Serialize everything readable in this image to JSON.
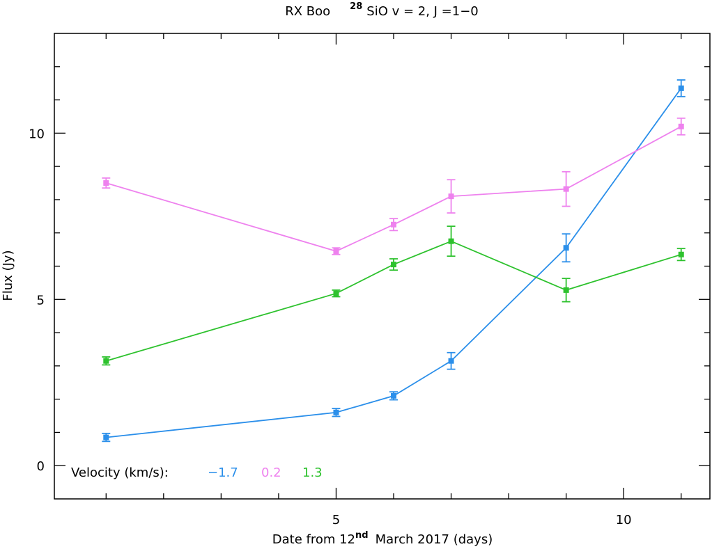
{
  "chart_data": {
    "type": "line",
    "title": {
      "prefix": "RX Boo",
      "isotope": "28",
      "main": "SiO v = 2, J =1−0"
    },
    "xlabel": {
      "prefix": "Date from 12",
      "superscript": "nd",
      "suffix": "March 2017 (days)"
    },
    "ylabel": "Flux (Jy)",
    "xlim": [
      0.1,
      11.5
    ],
    "ylim": [
      -1,
      13
    ],
    "x_ticks": [
      5,
      10
    ],
    "x_tick_labels": [
      "5",
      "10"
    ],
    "y_ticks": [
      0,
      5,
      10
    ],
    "y_tick_labels": [
      "0",
      "5",
      "10"
    ],
    "legend": {
      "label": "Velocity (km/s):",
      "placement": "bottom-left"
    },
    "series": [
      {
        "name": "−1.7",
        "color": "#2b8fea",
        "x": [
          1,
          5,
          6,
          7,
          9,
          11
        ],
        "y": [
          0.85,
          1.6,
          2.1,
          3.15,
          6.55,
          11.35
        ],
        "err": [
          0.12,
          0.12,
          0.12,
          0.25,
          0.42,
          0.25
        ]
      },
      {
        "name": "0.2",
        "color": "#ee82ee",
        "x": [
          1,
          5,
          6,
          7,
          9,
          11
        ],
        "y": [
          8.5,
          6.45,
          7.25,
          8.1,
          8.32,
          10.2
        ],
        "err": [
          0.15,
          0.1,
          0.18,
          0.5,
          0.52,
          0.25
        ]
      },
      {
        "name": "1.3",
        "color": "#2ec22e",
        "x": [
          1,
          5,
          6,
          7,
          9,
          11
        ],
        "y": [
          3.15,
          5.18,
          6.05,
          6.75,
          5.28,
          6.35
        ],
        "err": [
          0.12,
          0.1,
          0.17,
          0.45,
          0.35,
          0.18
        ]
      }
    ]
  }
}
